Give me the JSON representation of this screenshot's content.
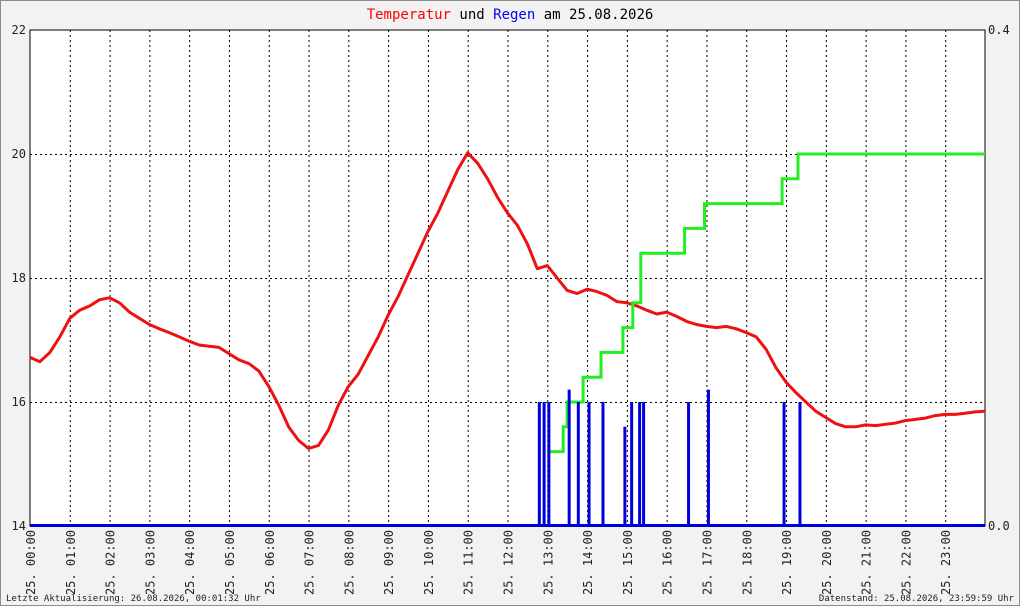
{
  "chart_data": {
    "type": "line",
    "title": {
      "part1": "Temperatur",
      "part2": " und ",
      "part3": "Regen",
      "part4": " am 25.08.2026"
    },
    "colors": {
      "title_temp": "#ff0000",
      "title_regen": "#0000ff",
      "temperature_line": "#ee1111",
      "rain_cumulative_line": "#22ee22",
      "rain_bars": "#0000dd",
      "grid": "#000000",
      "plot_background": "#ffffff"
    },
    "x_tick_labels": [
      "25. 00:00",
      "25. 01:00",
      "25. 02:00",
      "25. 03:00",
      "25. 04:00",
      "25. 05:00",
      "25. 06:00",
      "25. 07:00",
      "25. 08:00",
      "25. 09:00",
      "25. 10:00",
      "25. 11:00",
      "25. 12:00",
      "25. 13:00",
      "25. 14:00",
      "25. 15:00",
      "25. 16:00",
      "25. 17:00",
      "25. 18:00",
      "25. 19:00",
      "25. 20:00",
      "25. 21:00",
      "25. 22:00",
      "25. 23:00"
    ],
    "x_range_hours": [
      0,
      24
    ],
    "y_left": {
      "min": 14,
      "max": 22,
      "ticks": [
        "14",
        "16",
        "18",
        "20",
        "22"
      ]
    },
    "y_right": {
      "min": 0.0,
      "max": 0.4,
      "ticks": [
        "0.0",
        "0.4"
      ]
    },
    "grid": true,
    "series": [
      {
        "name": "Temperatur",
        "axis": "left",
        "points": [
          [
            0.0,
            16.72
          ],
          [
            0.25,
            16.65
          ],
          [
            0.5,
            16.8
          ],
          [
            0.75,
            17.05
          ],
          [
            1.0,
            17.35
          ],
          [
            1.25,
            17.48
          ],
          [
            1.5,
            17.55
          ],
          [
            1.75,
            17.65
          ],
          [
            2.0,
            17.68
          ],
          [
            2.25,
            17.6
          ],
          [
            2.5,
            17.45
          ],
          [
            2.75,
            17.35
          ],
          [
            3.0,
            17.25
          ],
          [
            3.25,
            17.18
          ],
          [
            3.5,
            17.12
          ],
          [
            3.75,
            17.05
          ],
          [
            4.0,
            16.98
          ],
          [
            4.25,
            16.92
          ],
          [
            4.5,
            16.9
          ],
          [
            4.75,
            16.88
          ],
          [
            5.0,
            16.78
          ],
          [
            5.25,
            16.68
          ],
          [
            5.5,
            16.62
          ],
          [
            5.75,
            16.5
          ],
          [
            6.0,
            16.25
          ],
          [
            6.25,
            15.95
          ],
          [
            6.5,
            15.6
          ],
          [
            6.75,
            15.38
          ],
          [
            7.0,
            15.25
          ],
          [
            7.25,
            15.3
          ],
          [
            7.5,
            15.55
          ],
          [
            7.75,
            15.95
          ],
          [
            8.0,
            16.25
          ],
          [
            8.25,
            16.45
          ],
          [
            8.5,
            16.75
          ],
          [
            8.75,
            17.05
          ],
          [
            9.0,
            17.4
          ],
          [
            9.25,
            17.7
          ],
          [
            9.5,
            18.05
          ],
          [
            9.75,
            18.4
          ],
          [
            10.0,
            18.75
          ],
          [
            10.25,
            19.05
          ],
          [
            10.5,
            19.4
          ],
          [
            10.75,
            19.75
          ],
          [
            11.0,
            20.02
          ],
          [
            11.25,
            19.85
          ],
          [
            11.5,
            19.6
          ],
          [
            11.75,
            19.3
          ],
          [
            12.0,
            19.05
          ],
          [
            12.25,
            18.85
          ],
          [
            12.5,
            18.55
          ],
          [
            12.75,
            18.15
          ],
          [
            13.0,
            18.2
          ],
          [
            13.25,
            18.0
          ],
          [
            13.5,
            17.8
          ],
          [
            13.75,
            17.75
          ],
          [
            14.0,
            17.82
          ],
          [
            14.25,
            17.78
          ],
          [
            14.5,
            17.72
          ],
          [
            14.75,
            17.62
          ],
          [
            15.0,
            17.6
          ],
          [
            15.25,
            17.55
          ],
          [
            15.5,
            17.48
          ],
          [
            15.75,
            17.42
          ],
          [
            16.0,
            17.45
          ],
          [
            16.25,
            17.38
          ],
          [
            16.5,
            17.3
          ],
          [
            16.75,
            17.25
          ],
          [
            17.0,
            17.22
          ],
          [
            17.25,
            17.2
          ],
          [
            17.5,
            17.22
          ],
          [
            17.75,
            17.18
          ],
          [
            18.0,
            17.12
          ],
          [
            18.25,
            17.05
          ],
          [
            18.5,
            16.85
          ],
          [
            18.75,
            16.55
          ],
          [
            19.0,
            16.32
          ],
          [
            19.25,
            16.15
          ],
          [
            19.5,
            16.0
          ],
          [
            19.75,
            15.85
          ],
          [
            20.0,
            15.75
          ],
          [
            20.25,
            15.65
          ],
          [
            20.5,
            15.6
          ],
          [
            20.75,
            15.6
          ],
          [
            21.0,
            15.63
          ],
          [
            21.25,
            15.62
          ],
          [
            21.5,
            15.64
          ],
          [
            21.75,
            15.66
          ],
          [
            22.0,
            15.7
          ],
          [
            22.25,
            15.72
          ],
          [
            22.5,
            15.74
          ],
          [
            22.75,
            15.78
          ],
          [
            23.0,
            15.8
          ],
          [
            23.25,
            15.8
          ],
          [
            23.5,
            15.82
          ],
          [
            23.75,
            15.84
          ],
          [
            24.0,
            15.85
          ]
        ]
      },
      {
        "name": "Regen",
        "axis": "right",
        "kind": "step",
        "points": [
          [
            13.0,
            0.06
          ],
          [
            13.4,
            0.06
          ],
          [
            13.4,
            0.08
          ],
          [
            13.5,
            0.08
          ],
          [
            13.5,
            0.1
          ],
          [
            13.9,
            0.1
          ],
          [
            13.9,
            0.12
          ],
          [
            14.35,
            0.12
          ],
          [
            14.35,
            0.14
          ],
          [
            14.9,
            0.14
          ],
          [
            14.9,
            0.16
          ],
          [
            15.15,
            0.16
          ],
          [
            15.15,
            0.18
          ],
          [
            15.35,
            0.18
          ],
          [
            15.35,
            0.22
          ],
          [
            16.45,
            0.22
          ],
          [
            16.45,
            0.24
          ],
          [
            16.95,
            0.24
          ],
          [
            16.95,
            0.26
          ],
          [
            18.9,
            0.26
          ],
          [
            18.9,
            0.28
          ],
          [
            19.3,
            0.28
          ],
          [
            19.3,
            0.3
          ],
          [
            24.0,
            0.3
          ]
        ]
      },
      {
        "kind": "bars",
        "axis": "right",
        "bars": [
          [
            12.8,
            0.1
          ],
          [
            12.92,
            0.1
          ],
          [
            13.04,
            0.1
          ],
          [
            13.55,
            0.11
          ],
          [
            13.78,
            0.1
          ],
          [
            14.05,
            0.1
          ],
          [
            14.4,
            0.1
          ],
          [
            14.95,
            0.08
          ],
          [
            15.12,
            0.1
          ],
          [
            15.32,
            0.1
          ],
          [
            15.42,
            0.1
          ],
          [
            16.55,
            0.1
          ],
          [
            17.05,
            0.11
          ],
          [
            18.95,
            0.1
          ],
          [
            19.35,
            0.1
          ]
        ]
      }
    ],
    "footer": {
      "left": "Letzte Aktualisierung: 26.08.2026, 00:01:32 Uhr",
      "right": "Datenstand: 25.08.2026, 23:59:59 Uhr"
    }
  }
}
